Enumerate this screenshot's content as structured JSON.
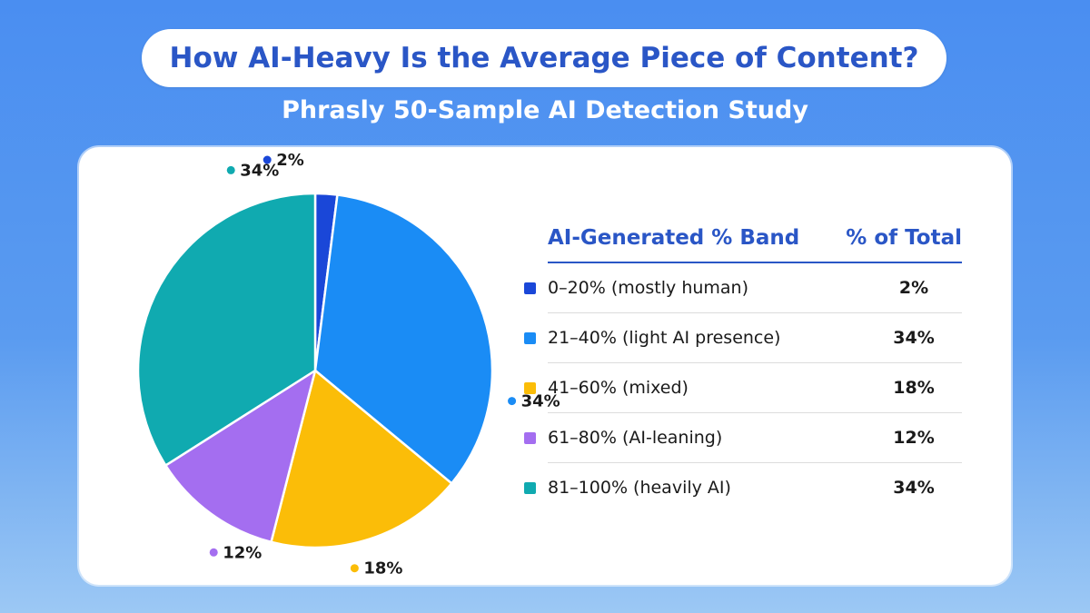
{
  "header": {
    "title": "How AI-Heavy Is the Average Piece of Content?",
    "subtitle": "Phrasly 50-Sample AI Detection Study"
  },
  "table": {
    "col_band": "AI-Generated % Band",
    "col_total": "% of Total"
  },
  "chart_data": {
    "type": "pie",
    "categories": [
      "0–20% (mostly human)",
      "21–40% (light AI presence)",
      "41–60% (mixed)",
      "61–80% (AI-leaning)",
      "81–100% (heavily AI)"
    ],
    "values": [
      2,
      34,
      18,
      12,
      34
    ],
    "labels": [
      "2%",
      "34%",
      "18%",
      "12%",
      "34%"
    ],
    "colors": [
      "#1a47d8",
      "#1a8cf5",
      "#fbbd08",
      "#a46ef0",
      "#10aab0"
    ],
    "legend": "right"
  }
}
